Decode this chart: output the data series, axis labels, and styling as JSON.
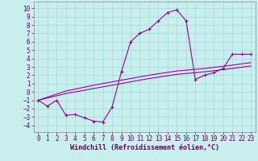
{
  "xlabel": "Windchill (Refroidissement éolien,°C)",
  "bg_color": "#c8eeee",
  "line_color": "#990099",
  "grid_color": "#aadddd",
  "x_ticks": [
    0,
    1,
    2,
    3,
    4,
    5,
    6,
    7,
    8,
    9,
    10,
    11,
    12,
    13,
    14,
    15,
    16,
    17,
    18,
    19,
    20,
    21,
    22,
    23
  ],
  "y_ticks": [
    -4,
    -3,
    -2,
    -1,
    0,
    1,
    2,
    3,
    4,
    5,
    6,
    7,
    8,
    9,
    10
  ],
  "ylim": [
    -4.8,
    10.8
  ],
  "xlim": [
    -0.5,
    23.5
  ],
  "series1_x": [
    0,
    1,
    2,
    3,
    4,
    5,
    6,
    7,
    8,
    9,
    10,
    11,
    12,
    13,
    14,
    15,
    16,
    17,
    18,
    19,
    20,
    21,
    22,
    23
  ],
  "series1_y": [
    -1.0,
    -1.7,
    -1.0,
    -2.8,
    -2.7,
    -3.1,
    -3.5,
    -3.6,
    -1.8,
    2.4,
    6.0,
    7.0,
    7.5,
    8.5,
    9.5,
    9.8,
    8.5,
    1.5,
    2.0,
    2.3,
    2.8,
    4.5,
    4.5,
    4.5
  ],
  "series2_x": [
    0,
    3,
    6,
    9,
    12,
    15,
    18,
    21,
    23
  ],
  "series2_y": [
    -1.0,
    -0.2,
    0.4,
    1.0,
    1.6,
    2.1,
    2.4,
    2.8,
    3.1
  ],
  "series3_x": [
    0,
    3,
    6,
    9,
    12,
    15,
    18,
    21,
    23
  ],
  "series3_y": [
    -1.0,
    0.1,
    0.8,
    1.4,
    2.0,
    2.5,
    2.8,
    3.2,
    3.5
  ]
}
